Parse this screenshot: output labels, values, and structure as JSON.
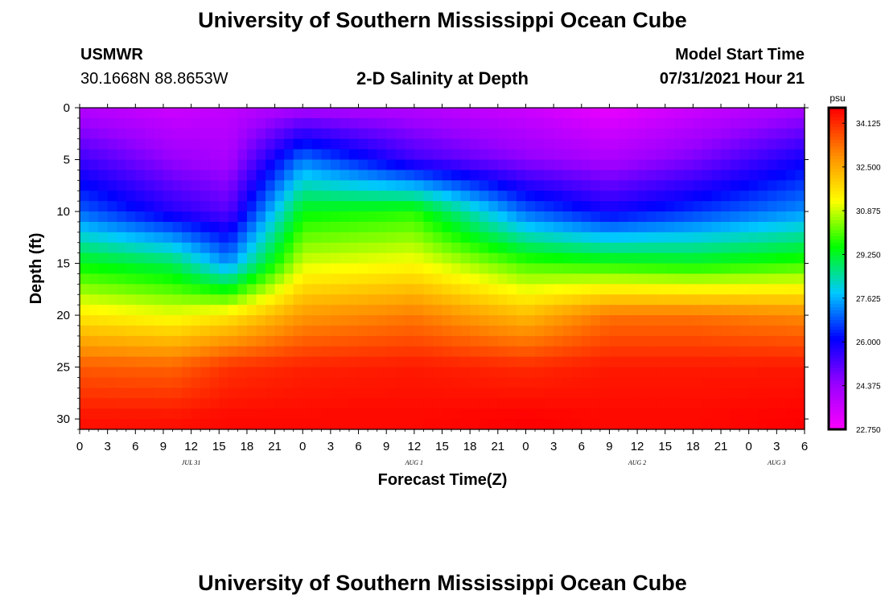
{
  "header": {
    "title": "University of Southern Mississippi Ocean Cube",
    "station": "USMWR",
    "coords": "30.1668N  88.8653W",
    "subtitle": "2-D Salinity at Depth",
    "model_label": "Model Start Time",
    "model_time": "07/31/2021 Hour 21"
  },
  "footer": {
    "title": "University of Southern Mississippi Ocean Cube"
  },
  "colors": {
    "colormap": [
      "#ff00ff",
      "#9b00ff",
      "#0000ff",
      "#00c8ff",
      "#00ff00",
      "#ffff00",
      "#ff8c00",
      "#ff0000"
    ]
  },
  "chart_data": {
    "type": "heatmap",
    "title": "2-D Salinity at Depth",
    "xlabel": "Forecast Time(Z)",
    "ylabel": "Depth (ft)",
    "colorbar_unit": "psu",
    "x_hours": [
      0,
      3,
      6,
      9,
      12,
      15,
      18,
      21,
      24,
      27,
      30,
      33,
      36,
      39,
      42,
      45,
      48,
      51,
      54,
      57,
      60,
      63,
      66,
      69,
      72,
      75,
      78
    ],
    "x_tick_labels": [
      "0",
      "3",
      "6",
      "9",
      "12",
      "15",
      "18",
      "21",
      "0",
      "3",
      "6",
      "9",
      "12",
      "15",
      "18",
      "21",
      "0",
      "3",
      "6",
      "9",
      "12",
      "15",
      "18",
      "21",
      "0",
      "3",
      "6"
    ],
    "date_labels": [
      {
        "label": "JUL 31",
        "hour": 12
      },
      {
        "label": "AUG 1",
        "hour": 36
      },
      {
        "label": "AUG 2",
        "hour": 60
      },
      {
        "label": "AUG 3",
        "hour": 75
      }
    ],
    "xlim": [
      0,
      78
    ],
    "ylim": [
      0,
      31
    ],
    "y_inverted": true,
    "y_ticks": [
      0,
      5,
      10,
      15,
      20,
      25,
      30
    ],
    "y_tick_labels": [
      "0",
      "5",
      "10",
      "15",
      "20",
      "25",
      "30"
    ],
    "colorbar_ticks": [
      34.125,
      32.5,
      30.875,
      29.25,
      27.625,
      26.0,
      24.375,
      22.75
    ],
    "colorbar_tick_labels": [
      "34.125",
      "32.500",
      "30.875",
      "29.250",
      "27.625",
      "26.000",
      "24.375",
      "22.750"
    ],
    "clim": [
      22.75,
      34.7
    ],
    "depths": [
      0,
      5,
      10,
      15,
      20,
      25,
      30
    ],
    "values": [
      [
        24.0,
        23.6,
        23.8,
        24.2,
        24.0,
        23.6,
        23.1,
        23.6,
        24.2
      ],
      [
        25.5,
        24.5,
        24.2,
        27.2,
        25.5,
        24.6,
        24.2,
        24.8,
        26.0
      ],
      [
        27.0,
        25.8,
        25.2,
        29.5,
        29.8,
        27.0,
        26.0,
        26.6,
        27.4
      ],
      [
        29.5,
        29.0,
        27.4,
        31.0,
        31.3,
        30.0,
        29.7,
        29.5,
        29.9
      ],
      [
        31.6,
        31.2,
        31.6,
        32.8,
        33.2,
        32.3,
        33.3,
        33.3,
        33.0
      ],
      [
        33.6,
        33.5,
        34.1,
        34.3,
        34.4,
        34.2,
        34.4,
        34.4,
        34.4
      ],
      [
        34.5,
        34.5,
        34.6,
        34.6,
        34.6,
        34.7,
        34.6,
        34.6,
        34.7
      ]
    ],
    "value_times": [
      0,
      10,
      16,
      24,
      36,
      48,
      57,
      66,
      78
    ]
  }
}
